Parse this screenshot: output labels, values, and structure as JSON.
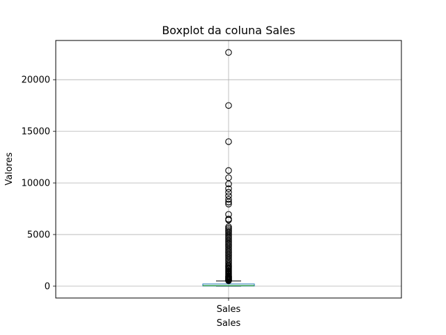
{
  "chart_data": {
    "type": "boxplot",
    "title": "Boxplot da coluna Sales",
    "xlabel": "Sales",
    "ylabel": "Valores",
    "categories": [
      "Sales"
    ],
    "ylim": [
      -1150,
      23800
    ],
    "yticks": [
      0,
      5000,
      10000,
      15000,
      20000
    ],
    "grid": true,
    "box": {
      "min": 1,
      "q1": 17,
      "median": 55,
      "q3": 210,
      "whisker_high": 500
    },
    "outliers": [
      22638,
      17499,
      13999,
      11200,
      10500,
      9900,
      9450,
      9100,
      8750,
      8400,
      8150,
      7950,
      6950,
      6500,
      6400,
      5750,
      5600,
      5450,
      5300,
      5150,
      5000,
      4850,
      4700,
      4550,
      4400,
      4250,
      4100,
      3950,
      3800,
      3650,
      3500,
      3350,
      3200,
      3050,
      2900,
      2750,
      2600,
      2450,
      2300,
      2150,
      2000,
      1900,
      1800,
      1700,
      1600,
      1500,
      1400,
      1300,
      1200,
      1100,
      1000,
      950,
      900,
      850,
      800,
      750,
      700,
      650,
      600,
      560,
      530
    ],
    "colors": {
      "box": "#1f77b4",
      "median": "#2ca02c",
      "whisker": "#000000",
      "outlier": "#000000",
      "grid": "#b0b0b0"
    }
  }
}
